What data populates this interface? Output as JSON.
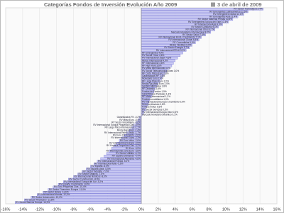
{
  "chart_data": {
    "type": "bar",
    "orientation": "horizontal",
    "title": "Categorías Fondos de Inversión Evolución Año 2009",
    "subtitle": "3 de abril de 2009",
    "color": "#c9c9f2",
    "edge_color": "#5a5ad0",
    "grid": true,
    "categories": [
      "RV Sector Tecnología 14,4%",
      "RV Emergentes Latinoamérica 12,6%",
      "RV Emergentes Global 12,1%",
      "RV Emergentes Asia 11,4%",
      "RV Sector Materias Primas 10,8%",
      "RV Emergentes Europa del Este 10,3%",
      "RV Internacional Asia 9,6%",
      "RV Sector Consumo 9,1%",
      "RV Internacional Otros 8,7%",
      "Mercado Monetario Internacional 8,2%",
      "RV Sector Salud 7,6%",
      "RV Internacional EEUU Crecimiento 7,1%",
      "RV Internacional Global 6,8%",
      "RF Convertibles 6,4%",
      "Mixtos Flexibles 6,0%",
      "RV Sector Energía 5,7%",
      "RV Internacional EEUU 5,3%",
      "RF Emergentes 4,9%",
      "RV Sector Otros 4,6%",
      "RV Internacional Japón 4,3%",
      "Mixtos Internacional 4,0%",
      "RF Internacional 3,8%",
      "RF High Yield 3,6%",
      "RV Mixta Internacional 3,3%",
      "RV Sector Telecomunicaciones 3,0%",
      "RF Corto Plazo Euro 2,8%",
      "Garantizados RF 2,6%",
      "Monetario Euro 2,4%",
      "RF Largo Plazo Euro 2,2%",
      "Renta Fija Mixta Euro 2,0%",
      "Gestión Alternativa 1,8%",
      "RF Dinámico 1,6%",
      "Fondos de Fondos 1,5%",
      "Garantizados Parciales 1,3%",
      "RF Mixta Internacional 1,2%",
      "Fondos Inmobiliarios 1,0%",
      "RV Internacional Europa Crecimiento 0,9%",
      "Retorno Absoluto 0,8%",
      "Fondos Índice 0,6%",
      "RV Sector Servicios 0,5%",
      "RV Internacional Europa Valor 0,3%",
      "Mercado Monetario Dinámico 0,1%",
      "Garantizados RV -0,2%",
      "RV Mixta Euro -0,4%",
      "RV Sector Inmobiliario -0,6%",
      "RV Internacional Europa Pequeñas Cías -0,9%",
      "RF Largo Plazo Internacional -1,1%",
      "Mixtos Agresivos -1,4%",
      "RV Internacional Reino Unido -1,7%",
      "RV Euro Crecimiento -2,0%",
      "RV Internacional Suiza -2,3%",
      "RV Euro Valor -2,6%",
      "RV Internacional Europa -2,9%",
      "RV España Pequeñas Cías -3,2%",
      "RV Euro -3,5%",
      "RV Internacional Zona Euro -3,8%",
      "RV Sector Utilities -4,1%",
      "RV España Dividendo -4,4%",
      "RV Internacional Alemania -4,8%",
      "RV Internacional Francia -5,2%",
      "RV Internacional Italia -5,6%",
      "RV España -6,0%",
      "RV España Valor -6,5%",
      "RV Sector Industria -7,0%",
      "RV Sector Seguros -7,5%",
      "RV Internacional Nórdicos -8,0%",
      "RV Sector Construcción -8,6%",
      "RV Internacional Europa del Sur -9,2%",
      "RV España Crecimiento -9,8%",
      "RV Euro Pequeñas Cías -10,4%",
      "RV Sector Financiero Europa -11,0%",
      "RV Sector Banca -11,6%",
      "RV Internacional Irlanda -12,3%",
      "RV Sector Automoción -13,0%",
      "RV Sector Financiero -13,8%",
      "RV Sector Bancos Europa -14,9%"
    ],
    "values": [
      14.4,
      12.6,
      12.1,
      11.4,
      10.8,
      10.3,
      9.6,
      9.1,
      8.7,
      8.2,
      7.6,
      7.1,
      6.8,
      6.4,
      6.0,
      5.7,
      5.3,
      4.9,
      4.6,
      4.3,
      4.0,
      3.8,
      3.6,
      3.3,
      3.0,
      2.8,
      2.6,
      2.4,
      2.2,
      2.0,
      1.8,
      1.6,
      1.5,
      1.3,
      1.2,
      1.0,
      0.9,
      0.8,
      0.6,
      0.5,
      0.3,
      0.1,
      -0.2,
      -0.4,
      -0.6,
      -0.9,
      -1.1,
      -1.4,
      -1.7,
      -2.0,
      -2.3,
      -2.6,
      -2.9,
      -3.2,
      -3.5,
      -3.8,
      -4.1,
      -4.4,
      -4.8,
      -5.2,
      -5.6,
      -6.0,
      -6.5,
      -7.0,
      -7.5,
      -8.0,
      -8.6,
      -9.2,
      -9.8,
      -10.4,
      -11.0,
      -11.6,
      -12.3,
      -13.0,
      -13.8,
      -14.9
    ],
    "xlim": [
      -16,
      16
    ],
    "xticks": [
      {
        "value": -16,
        "label": "-16%"
      },
      {
        "value": -14,
        "label": "-14%"
      },
      {
        "value": -12,
        "label": "-12%"
      },
      {
        "value": -10,
        "label": "-10%"
      },
      {
        "value": -8,
        "label": "-8%"
      },
      {
        "value": -6,
        "label": "-6%"
      },
      {
        "value": -4,
        "label": "-4%"
      },
      {
        "value": -2,
        "label": "-2%"
      },
      {
        "value": 0,
        "label": "0%"
      },
      {
        "value": 2,
        "label": "2%"
      },
      {
        "value": 4,
        "label": "4%"
      },
      {
        "value": 6,
        "label": "6%"
      },
      {
        "value": 8,
        "label": "8%"
      },
      {
        "value": 10,
        "label": "10%"
      },
      {
        "value": 12,
        "label": "12%"
      },
      {
        "value": 14,
        "label": "14%"
      },
      {
        "value": 16,
        "label": "16%"
      }
    ]
  }
}
